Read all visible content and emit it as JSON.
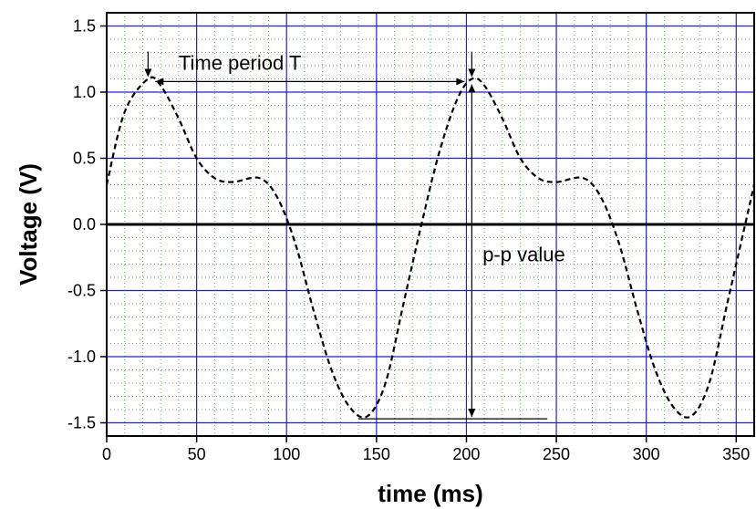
{
  "chart_data": {
    "type": "line",
    "title": "",
    "xlabel": "time (ms)",
    "ylabel": "Voltage (V)",
    "xlim": [
      0,
      360
    ],
    "ylim": [
      -1.6,
      1.6
    ],
    "x_ticks": [
      0,
      50,
      100,
      150,
      200,
      250,
      300,
      350
    ],
    "x_tick_labels": [
      "0",
      "50",
      "100",
      "150",
      "200",
      "250",
      "300",
      "350"
    ],
    "y_ticks": [
      -1.5,
      -1.0,
      -0.5,
      0.0,
      0.5,
      1.0,
      1.5
    ],
    "y_tick_labels": [
      "-1.5",
      "-1.0",
      "-0.5",
      "0.0",
      "0.5",
      "1.0",
      "1.5"
    ],
    "grid": true,
    "grid_color": "#2222cc",
    "minor_grid_color": "#66bb66",
    "line_color": "#000000",
    "line_style": "dashed",
    "series": [
      {
        "x": [
          0,
          10,
          23,
          30,
          40,
          50,
          60,
          70,
          85,
          95,
          105,
          115,
          125,
          135,
          145,
          155,
          165,
          175,
          185,
          195,
          203,
          210,
          220,
          230,
          240,
          250,
          265,
          275,
          285,
          295,
          305,
          315,
          325,
          335,
          345,
          355,
          360
        ],
        "y": [
          0.3,
          0.85,
          1.1,
          1.05,
          0.8,
          0.5,
          0.35,
          0.32,
          0.35,
          0.2,
          -0.15,
          -0.65,
          -1.1,
          -1.38,
          -1.45,
          -1.2,
          -0.6,
          0.0,
          0.55,
          0.95,
          1.1,
          1.05,
          0.8,
          0.5,
          0.35,
          0.32,
          0.35,
          0.2,
          -0.15,
          -0.65,
          -1.1,
          -1.38,
          -1.45,
          -1.2,
          -0.6,
          0.0,
          0.3
        ]
      }
    ],
    "annotations": {
      "period_label": "Time period T",
      "pp_label": "p-p value",
      "period_start_x": 23,
      "period_end_x": 203,
      "period_y": 1.08,
      "peak_y": 1.1,
      "trough_y": -1.47,
      "pp_x": 203,
      "trough_line_start_x": 140,
      "trough_line_end_x": 245
    }
  }
}
